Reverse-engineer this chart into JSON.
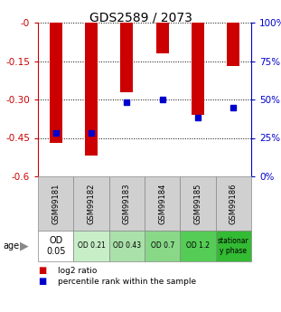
{
  "title": "GDS2589 / 2073",
  "samples": [
    "GSM99181",
    "GSM99182",
    "GSM99183",
    "GSM99184",
    "GSM99185",
    "GSM99186"
  ],
  "log2_ratio": [
    -0.47,
    -0.52,
    -0.27,
    -0.12,
    -0.36,
    -0.17
  ],
  "percentile_rank": [
    28,
    28,
    48,
    50,
    38,
    45
  ],
  "age_labels": [
    "OD\n0.05",
    "OD 0.21",
    "OD 0.43",
    "OD 0.7",
    "OD 1.2",
    "stationar\ny phase"
  ],
  "age_colors": [
    "#ffffff",
    "#c8eec8",
    "#aae0aa",
    "#88d888",
    "#55cc55",
    "#33bb33"
  ],
  "ylim_left": [
    -0.6,
    0.0
  ],
  "ylim_right": [
    0,
    100
  ],
  "yticks_left": [
    0.0,
    -0.15,
    -0.3,
    -0.45,
    -0.6
  ],
  "yticks_right": [
    0,
    25,
    50,
    75,
    100
  ],
  "bar_color": "#cc0000",
  "dot_color": "#0000cc",
  "label_color_left": "#cc0000",
  "label_color_right": "#0000cc",
  "bar_width": 0.35,
  "dot_size": 5
}
